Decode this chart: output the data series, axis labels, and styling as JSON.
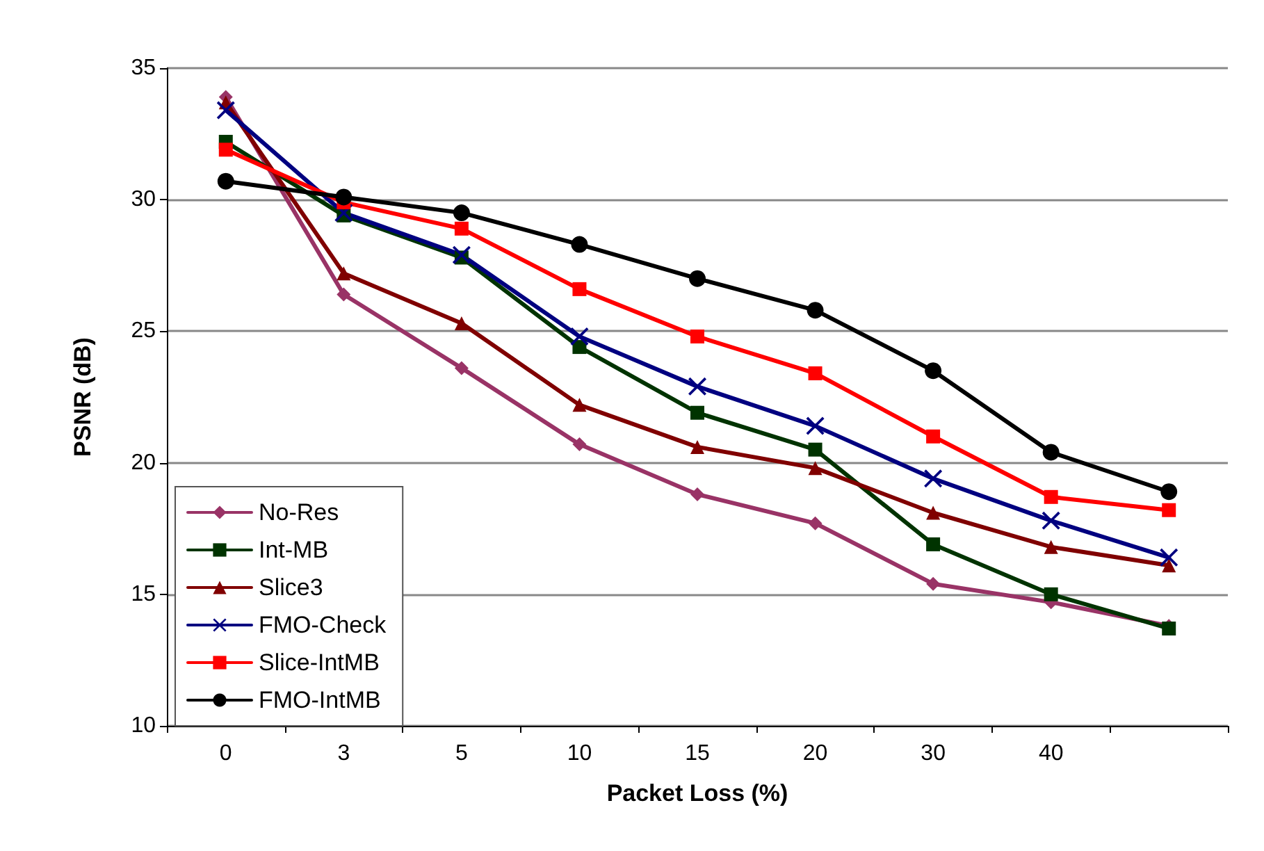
{
  "chart_data": {
    "type": "line",
    "xlabel": "Packet Loss (%)",
    "ylabel": "PSNR (dB)",
    "categories": [
      "0",
      "3",
      "5",
      "10",
      "15",
      "20",
      "30",
      "40",
      null
    ],
    "ylim": [
      10,
      35
    ],
    "yticks": [
      10,
      15,
      20,
      25,
      30,
      35
    ],
    "grid": "y",
    "legend": "bottom left",
    "line_style": "solid",
    "series": [
      {
        "name": "No-Res",
        "color": "#993366",
        "marker": "diamond",
        "values": [
          33.9,
          26.4,
          23.6,
          20.7,
          18.8,
          17.7,
          15.4,
          14.7,
          13.8
        ]
      },
      {
        "name": "Int-MB",
        "color": "#003300",
        "marker": "square",
        "values": [
          32.2,
          29.4,
          27.8,
          24.4,
          21.9,
          20.5,
          16.9,
          15.0,
          13.7
        ]
      },
      {
        "name": "Slice3",
        "color": "#800000",
        "marker": "triangle",
        "values": [
          33.7,
          27.2,
          25.3,
          22.2,
          20.6,
          19.8,
          18.1,
          16.8,
          16.1
        ]
      },
      {
        "name": "FMO-Check",
        "color": "#000080",
        "marker": "cross",
        "values": [
          33.4,
          29.5,
          27.9,
          24.8,
          22.9,
          21.4,
          19.4,
          17.8,
          16.4
        ]
      },
      {
        "name": "Slice-IntMB",
        "color": "#ff0000",
        "marker": "square",
        "values": [
          31.9,
          29.9,
          28.9,
          26.6,
          24.8,
          23.4,
          21.0,
          18.7,
          18.2
        ]
      },
      {
        "name": "FMO-IntMB",
        "color": "#000000",
        "marker": "circle",
        "values": [
          30.7,
          30.1,
          29.5,
          28.3,
          27.0,
          25.8,
          23.5,
          20.4,
          18.9
        ]
      }
    ]
  }
}
